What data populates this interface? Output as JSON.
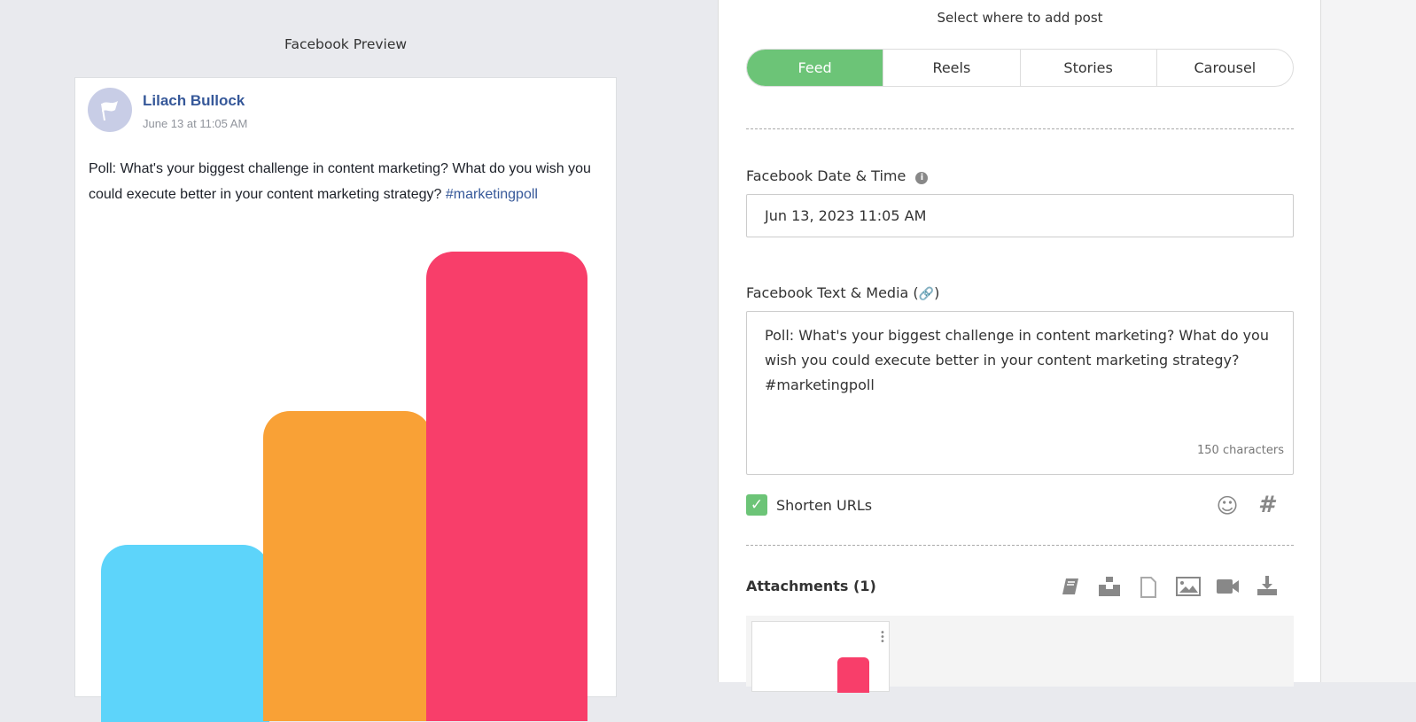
{
  "preview": {
    "title": "Facebook Preview",
    "author": "Lilach Bullock",
    "date": "June 13 at 11:05 AM",
    "text": "Poll: What's your biggest challenge in content marketing? What do you wish you could execute better in your content marketing strategy? ",
    "hashtag": "#marketingpoll",
    "image_colors": [
      "#5dd4fa",
      "#f9a136",
      "#f83e6a"
    ]
  },
  "editor": {
    "select_title": "Select where to add post",
    "tabs": [
      {
        "label": "Feed",
        "active": true
      },
      {
        "label": "Reels"
      },
      {
        "label": "Stories"
      },
      {
        "label": "Carousel"
      }
    ],
    "date_label": "Facebook Date & Time",
    "date_value": "Jun 13, 2023 11:05 AM",
    "text_label": "Facebook Text & Media (",
    "text_label_end": ")",
    "text_value": "Poll: What's your biggest challenge in content marketing? What do you wish you could execute better in your content marketing strategy? #marketingpoll",
    "char_count": "150 characters",
    "shorten_urls": "Shorten URLs",
    "shorten_checked": true,
    "attachments_label": "Attachments (1)",
    "accent": "#6cc477"
  }
}
